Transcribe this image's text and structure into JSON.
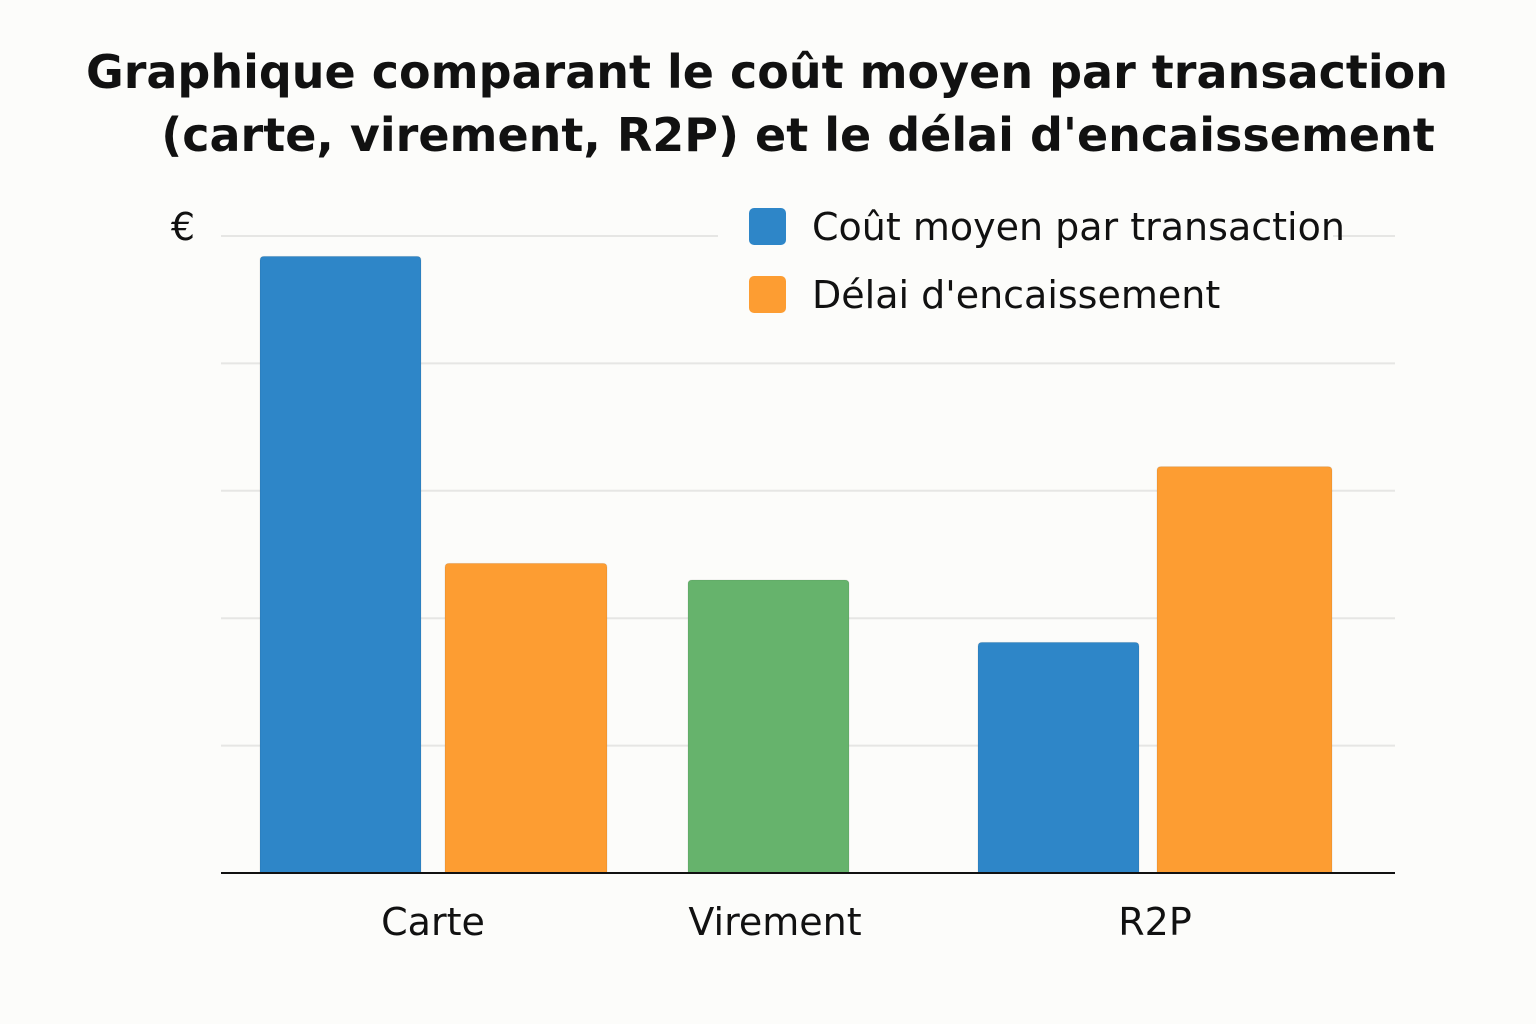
{
  "chart_data": {
    "type": "bar",
    "title_lines": [
      "Graphique comparant le coût moyen par transaction",
      "(carte, virement, R2P) et le délai d'encaissement"
    ],
    "ylabel": "€",
    "xlabel": "",
    "categories": [
      "Carte",
      "Virement",
      "R2P"
    ],
    "ylim": [
      0,
      5
    ],
    "grid": true,
    "legend_position": "top-right",
    "series": [
      {
        "name": "Coût moyen par transaction",
        "color": "#2e86c8",
        "values": [
          4.84,
          null,
          1.81
        ]
      },
      {
        "name": "Délai d'encaissement",
        "color": "#fd9d32",
        "values": [
          2.43,
          null,
          3.19
        ]
      },
      {
        "color": "#66b36c",
        "values": [
          null,
          2.3,
          null
        ]
      }
    ]
  }
}
